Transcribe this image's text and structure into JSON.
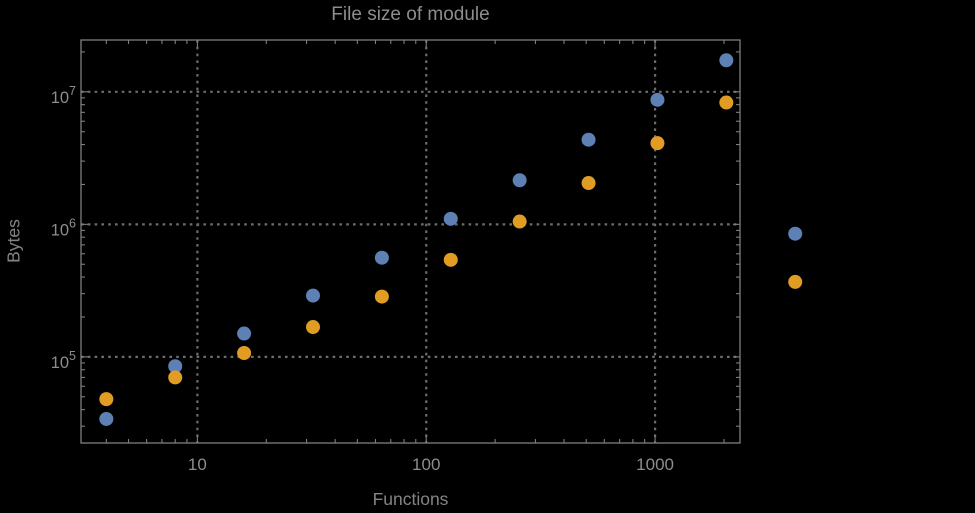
{
  "title": "File size of module",
  "colors": {
    "background": "#000000",
    "frame": "#7f7f7f",
    "grid": "#6d6d6d",
    "text": "#8d8d8d",
    "series_blue": "#5E81B5",
    "series_orange": "#E19C24"
  },
  "chart_data": {
    "type": "scatter",
    "title": "File size of module",
    "xlabel": "Functions",
    "ylabel": "Bytes",
    "xscale": "log",
    "yscale": "log",
    "xlim": [
      3.1,
      2350
    ],
    "ylim": [
      22400,
      24600000
    ],
    "grid": "dotted lines at powers of 10",
    "legend": "none",
    "clip_points": false,
    "x_ticks": [
      {
        "value": 10,
        "label": "10"
      },
      {
        "value": 100,
        "label": "100"
      },
      {
        "value": 1000,
        "label": "1000"
      }
    ],
    "y_ticks": [
      {
        "value": 100000,
        "base": "10",
        "exponent": "5"
      },
      {
        "value": 1000000,
        "base": "10",
        "exponent": "6"
      },
      {
        "value": 10000000,
        "base": "10",
        "exponent": "7"
      }
    ],
    "x": [
      4,
      8,
      16,
      32,
      64,
      128,
      256,
      512,
      1024,
      2048,
      4096
    ],
    "series": [
      {
        "color": "#5E81B5",
        "values": [
          34000,
          85000,
          150000,
          290000,
          560000,
          1100000,
          2150000,
          4350000,
          8700000,
          17300000,
          850000
        ]
      },
      {
        "color": "#E19C24",
        "values": [
          48000,
          70000,
          107000,
          168000,
          285000,
          540000,
          1050000,
          2050000,
          4100000,
          8300000,
          368000
        ]
      }
    ]
  }
}
